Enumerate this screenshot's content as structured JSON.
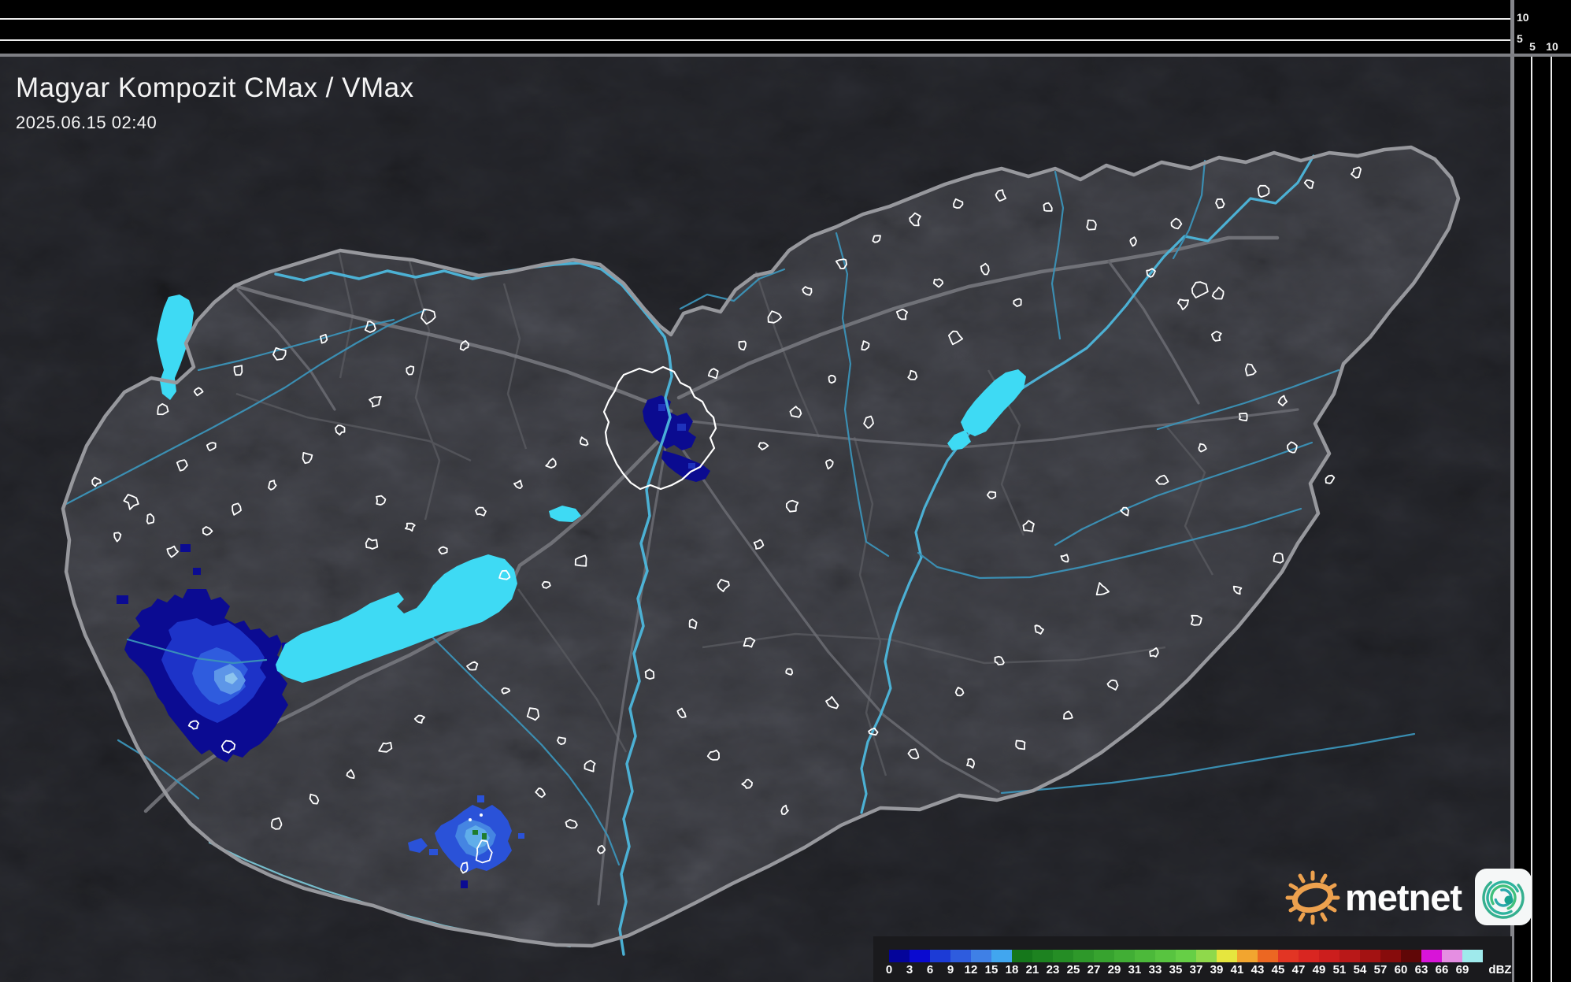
{
  "header": {
    "title": "Magyar Kompozit CMax / VMax",
    "datetime": "2025.06.15 02:40"
  },
  "legend": {
    "unit": "dBZ",
    "values": [
      "0",
      "3",
      "6",
      "9",
      "12",
      "15",
      "18",
      "21",
      "23",
      "25",
      "27",
      "29",
      "31",
      "33",
      "35",
      "37",
      "39",
      "41",
      "43",
      "45",
      "47",
      "49",
      "51",
      "54",
      "57",
      "60",
      "63",
      "66",
      "69"
    ],
    "colors": [
      "#04049a",
      "#0a0ad0",
      "#1c3bd6",
      "#2e5cde",
      "#3f80e6",
      "#41a6ef",
      "#15771b",
      "#1d8220",
      "#258d25",
      "#2e982a",
      "#37a32f",
      "#41ae35",
      "#4cb93a",
      "#58c440",
      "#66cf46",
      "#8fd94b",
      "#e6e63e",
      "#f2a52f",
      "#ec6722",
      "#e23524",
      "#d92621",
      "#cc1e1d",
      "#b91818",
      "#a31212",
      "#870c0c",
      "#600707",
      "#d814d8",
      "#e58ee2",
      "#9feaec"
    ]
  },
  "side_panels": {
    "top_ticks": [
      "10",
      "5"
    ],
    "right_ticks": [
      "5",
      "10"
    ]
  },
  "logo": {
    "text": "metnet",
    "sun_icon": "sun-icon",
    "app_icon": "radar-swirl-icon",
    "accent_color": "#eda14e",
    "swirl_color": "#2ab4a0"
  },
  "map": {
    "colors": {
      "inside_country": "#3b3c42",
      "outside_country": "#222328",
      "country_border": "#97989d",
      "river": "#3b93b8",
      "major_river": "#4db7dc",
      "lake": "#3edaf4",
      "road": "#6e6f76",
      "town_outline": "#ffffff"
    }
  }
}
